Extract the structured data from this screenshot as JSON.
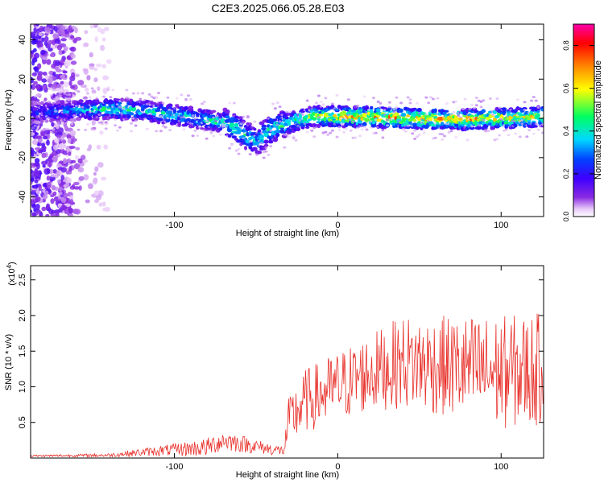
{
  "figure": {
    "title": "C2E3.2025.066.05.28.E03"
  },
  "chart_data": [
    {
      "type": "heatmap",
      "title": "C2E3.2025.066.05.28.E03",
      "xlabel": "Height of straight line (km)",
      "ylabel": "Frequency (Hz)",
      "xlim": [
        -188,
        126
      ],
      "ylim": [
        -50,
        48
      ],
      "x_ticks": [
        -100,
        0,
        100
      ],
      "x_tick_labels": [
        "-100",
        "0",
        "100"
      ],
      "y_ticks": [
        -40,
        -20,
        0,
        20,
        40
      ],
      "y_tick_labels": [
        "-40",
        "-20",
        "0",
        "20",
        "40"
      ],
      "colorbar": {
        "label": "Normalized spectral amplitude",
        "range": [
          0,
          0.9
        ],
        "ticks": [
          0.0,
          0.2,
          0.4,
          0.6,
          0.8
        ],
        "tick_labels": [
          "0.0",
          "0.2",
          "0.4",
          "0.6",
          "0.8"
        ],
        "colormap": [
          "#ffffff",
          "#e8c8f8",
          "#8a2be2",
          "#3c00ff",
          "#0044ff",
          "#00d8ff",
          "#00ff60",
          "#ffff00",
          "#ff8800",
          "#ff0000",
          "#ff00aa"
        ]
      },
      "ridge": {
        "note": "approximate frequency centre of the signal band versus height",
        "x": [
          -185,
          -160,
          -140,
          -120,
          -100,
          -85,
          -70,
          -60,
          -50,
          -42,
          -35,
          -25,
          -15,
          0,
          25,
          50,
          75,
          100,
          126
        ],
        "y": [
          3,
          4,
          5,
          4,
          2,
          0,
          -2,
          -6,
          -12,
          -6,
          -4,
          -1,
          1,
          1,
          0.5,
          0,
          -0.5,
          0,
          1
        ],
        "amplitude": [
          0.3,
          0.4,
          0.55,
          0.5,
          0.5,
          0.5,
          0.55,
          0.55,
          0.45,
          0.5,
          0.55,
          0.6,
          0.65,
          0.8,
          0.85,
          0.8,
          0.8,
          0.75,
          0.7
        ]
      },
      "noise_region_x": [
        -188,
        -140
      ]
    },
    {
      "type": "line",
      "xlabel": "Height of straight line (km)",
      "ylabel": "SNR (10 * v/v)",
      "y_multiplier": "(x10^4)",
      "xlim": [
        -188,
        126
      ],
      "ylim": [
        0,
        27000
      ],
      "x_ticks": [
        -100,
        0,
        100
      ],
      "x_tick_labels": [
        "-100",
        "0",
        "100"
      ],
      "y_ticks": [
        5000,
        10000,
        15000,
        20000,
        25000
      ],
      "y_tick_labels": [
        "0.5",
        "1.0",
        "1.5",
        "2.0",
        "2.5"
      ],
      "color": "#e8302a",
      "envelope": {
        "note": "approximate mean and fluctuation amplitude of the SNR trace",
        "x": [
          -188,
          -140,
          -110,
          -80,
          -70,
          -40,
          -33,
          -30,
          -25,
          -20,
          0,
          20,
          40,
          60,
          80,
          100,
          126
        ],
        "mean": [
          300,
          400,
          1000,
          1500,
          2500,
          1200,
          1000,
          5000,
          6500,
          8000,
          10000,
          12000,
          13500,
          13000,
          12500,
          12000,
          12500
        ],
        "amplitude": [
          150,
          250,
          700,
          1300,
          1500,
          800,
          700,
          3500,
          4000,
          4500,
          5000,
          5500,
          6500,
          7000,
          7500,
          8000,
          8000
        ]
      }
    }
  ]
}
